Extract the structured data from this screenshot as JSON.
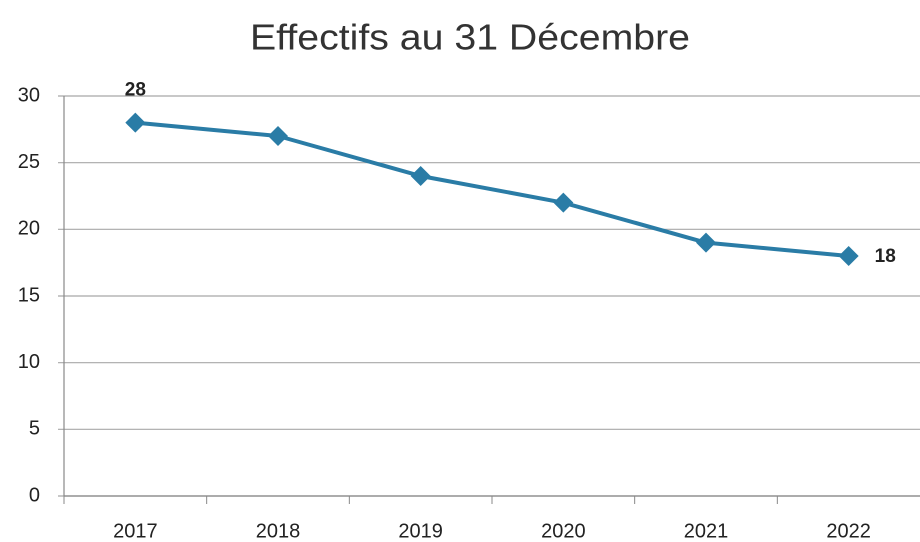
{
  "chart_data": {
    "type": "line",
    "title": "Effectifs au 31 Décembre",
    "categories": [
      "2017",
      "2018",
      "2019",
      "2020",
      "2021",
      "2022"
    ],
    "series": [
      {
        "name": "Effectifs",
        "color": "#2a7ca6",
        "values": [
          28,
          27,
          24,
          22,
          19,
          18
        ],
        "value_labels": [
          "28",
          null,
          null,
          null,
          null,
          "18"
        ]
      }
    ],
    "ylim": [
      0,
      30
    ],
    "yticks": [
      0,
      5,
      10,
      15,
      20,
      25,
      30
    ],
    "grid": true,
    "legend": false
  }
}
